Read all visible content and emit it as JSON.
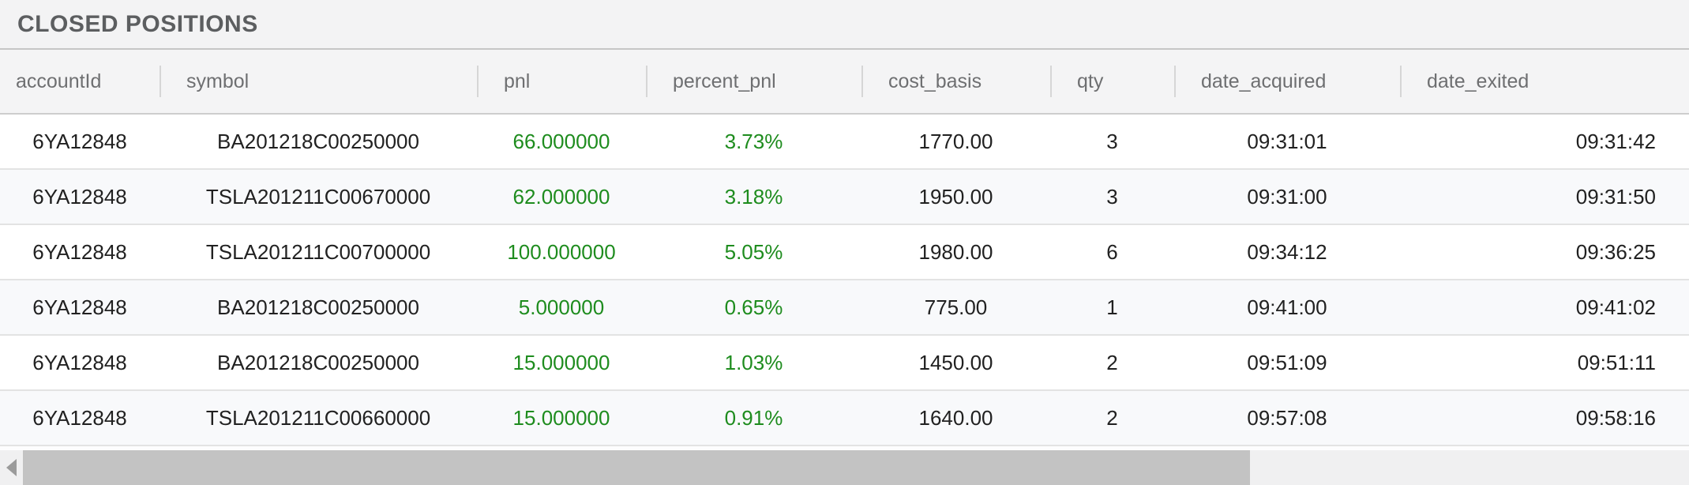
{
  "panel": {
    "title": "CLOSED POSITIONS"
  },
  "colors": {
    "positive": "#1e8c1e"
  },
  "table": {
    "columns": [
      {
        "key": "accountId",
        "label": "accountId"
      },
      {
        "key": "symbol",
        "label": "symbol"
      },
      {
        "key": "pnl",
        "label": "pnl"
      },
      {
        "key": "percent_pnl",
        "label": "percent_pnl"
      },
      {
        "key": "cost_basis",
        "label": "cost_basis"
      },
      {
        "key": "qty",
        "label": "qty"
      },
      {
        "key": "date_acquired",
        "label": "date_acquired"
      },
      {
        "key": "date_exited",
        "label": "date_exited"
      }
    ],
    "rows": [
      {
        "accountId": "6YA12848",
        "symbol": "BA201218C00250000",
        "pnl": "66.000000",
        "percent_pnl": "3.73%",
        "cost_basis": "1770.00",
        "qty": "3",
        "date_acquired": "09:31:01",
        "date_exited": "09:31:42"
      },
      {
        "accountId": "6YA12848",
        "symbol": "TSLA201211C00670000",
        "pnl": "62.000000",
        "percent_pnl": "3.18%",
        "cost_basis": "1950.00",
        "qty": "3",
        "date_acquired": "09:31:00",
        "date_exited": "09:31:50"
      },
      {
        "accountId": "6YA12848",
        "symbol": "TSLA201211C00700000",
        "pnl": "100.000000",
        "percent_pnl": "5.05%",
        "cost_basis": "1980.00",
        "qty": "6",
        "date_acquired": "09:34:12",
        "date_exited": "09:36:25"
      },
      {
        "accountId": "6YA12848",
        "symbol": "BA201218C00250000",
        "pnl": "5.000000",
        "percent_pnl": "0.65%",
        "cost_basis": "775.00",
        "qty": "1",
        "date_acquired": "09:41:00",
        "date_exited": "09:41:02"
      },
      {
        "accountId": "6YA12848",
        "symbol": "BA201218C00250000",
        "pnl": "15.000000",
        "percent_pnl": "1.03%",
        "cost_basis": "1450.00",
        "qty": "2",
        "date_acquired": "09:51:09",
        "date_exited": "09:51:11"
      },
      {
        "accountId": "6YA12848",
        "symbol": "TSLA201211C00660000",
        "pnl": "15.000000",
        "percent_pnl": "0.91%",
        "cost_basis": "1640.00",
        "qty": "2",
        "date_acquired": "09:57:08",
        "date_exited": "09:58:16"
      }
    ]
  },
  "scrollbar": {
    "orientation": "horizontal",
    "left_arrow_icon": "left-triangle"
  }
}
